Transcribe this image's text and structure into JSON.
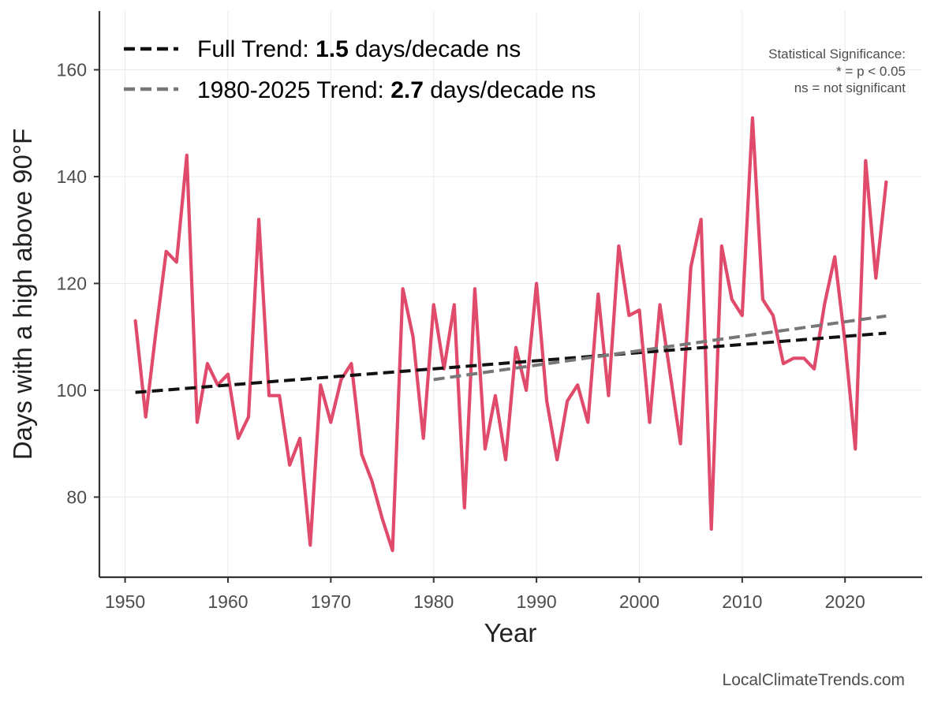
{
  "chart_data": {
    "type": "line",
    "xlabel": "Year",
    "ylabel": "Days with a high above 90°F",
    "xlim": [
      1947.5,
      2027.5
    ],
    "ylim": [
      65,
      171
    ],
    "x_ticks": [
      1950,
      1960,
      1970,
      1980,
      1990,
      2000,
      2010,
      2020
    ],
    "y_ticks": [
      80,
      100,
      120,
      140,
      160
    ],
    "grid": true,
    "legend_position": "top-left",
    "series": [
      {
        "color": "#e04a6b",
        "x": [
          1951,
          1952,
          1953,
          1954,
          1955,
          1956,
          1957,
          1958,
          1959,
          1960,
          1961,
          1962,
          1963,
          1964,
          1965,
          1966,
          1967,
          1968,
          1969,
          1970,
          1971,
          1972,
          1973,
          1974,
          1975,
          1976,
          1977,
          1978,
          1979,
          1980,
          1981,
          1982,
          1983,
          1984,
          1985,
          1986,
          1987,
          1988,
          1989,
          1990,
          1991,
          1992,
          1993,
          1994,
          1995,
          1996,
          1997,
          1998,
          1999,
          2000,
          2001,
          2002,
          2003,
          2004,
          2005,
          2006,
          2007,
          2008,
          2009,
          2010,
          2011,
          2012,
          2013,
          2014,
          2015,
          2016,
          2017,
          2018,
          2019,
          2020,
          2021,
          2022,
          2023,
          2024
        ],
        "values": [
          113,
          95,
          111,
          126,
          124,
          144,
          94,
          105,
          101,
          103,
          91,
          95,
          132,
          99,
          99,
          86,
          91,
          71,
          101,
          94,
          102,
          105,
          88,
          83,
          76,
          70,
          119,
          110,
          91,
          116,
          104,
          116,
          78,
          119,
          89,
          99,
          87,
          108,
          100,
          120,
          98,
          87,
          98,
          101,
          94,
          118,
          99,
          127,
          114,
          115,
          94,
          116,
          103,
          90,
          123,
          132,
          74,
          127,
          117,
          114,
          151,
          117,
          114,
          105,
          106,
          106,
          104,
          116,
          125,
          109,
          89,
          143,
          121,
          139
        ]
      }
    ],
    "trends": [
      {
        "name": "Full Trend",
        "label_prefix": "Full Trend: ",
        "rate": "1.5",
        "label_suffix": " days/decade ns",
        "color": "#111111",
        "x": [
          1951,
          2024
        ],
        "values": [
          99.6,
          110.7
        ]
      },
      {
        "name": "1980-2025 Trend",
        "label_prefix": "1980-2025 Trend: ",
        "rate": "2.7",
        "label_suffix": " days/decade ns",
        "color": "#777777",
        "x": [
          1980,
          2024
        ],
        "values": [
          102.0,
          113.9
        ]
      }
    ],
    "annotations": {
      "significance_title": "Statistical Significance:",
      "significance_star": "* = p < 0.05",
      "significance_ns": "ns = not significant"
    },
    "credit": "LocalClimateTrends.com"
  }
}
